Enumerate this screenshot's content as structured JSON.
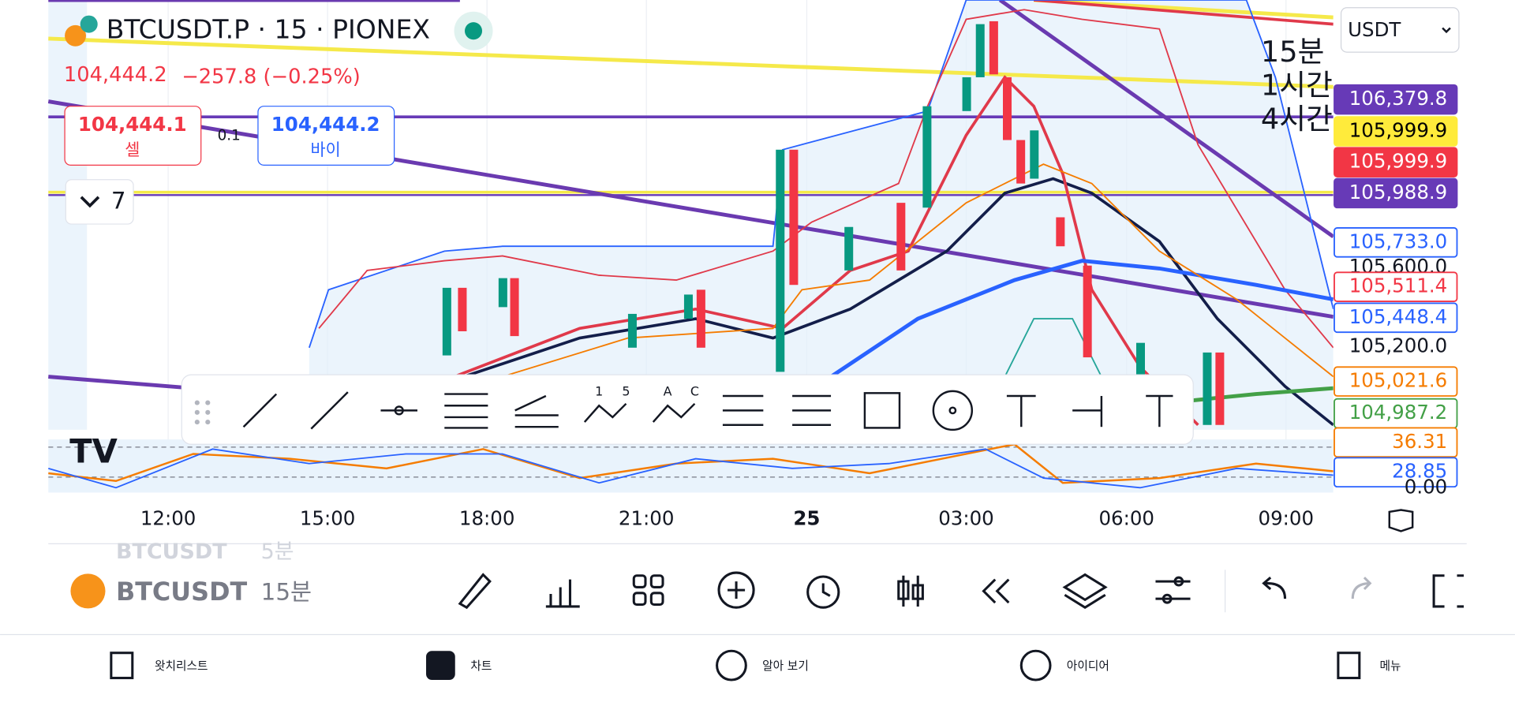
{
  "header": {
    "symbol": "BTCUSDT.P · 15 · PIONEX",
    "price": "104,444.2",
    "change": "−257.8 (−0.25%)"
  },
  "trade": {
    "sell_price": "104,444.1",
    "sell_label": "셀",
    "spread": "0.1",
    "buy_price": "104,444.2",
    "buy_label": "바이"
  },
  "indicators_collapsed": "7",
  "currency": "USDT",
  "intervals": [
    "15분",
    "1시간",
    "4시간"
  ],
  "price_labels": [
    {
      "text": "106,379.8",
      "bg": "#673ab7",
      "color": "#ffffff",
      "border": "#673ab7"
    },
    {
      "text": "105,999.9",
      "bg": "#ffeb3b",
      "color": "#000000",
      "border": "#ffeb3b"
    },
    {
      "text": "105,999.9",
      "bg": "#f23645",
      "color": "#ffffff",
      "border": "#f23645"
    },
    {
      "text": "105,988.9",
      "bg": "#673ab7",
      "color": "#ffffff",
      "border": "#673ab7"
    },
    {
      "text": "105,733.0",
      "bg": "#ffffff",
      "color": "#2962ff",
      "border": "#2962ff"
    },
    {
      "text": "105,600.0",
      "bg": "none",
      "color": "#131722",
      "border": "none"
    },
    {
      "text": "105,511.4",
      "bg": "#ffffff",
      "color": "#f23645",
      "border": "#f23645"
    },
    {
      "text": "105,448.4",
      "bg": "#ffffff",
      "color": "#2962ff",
      "border": "#2962ff"
    },
    {
      "text": "105,200.0",
      "bg": "none",
      "color": "#131722",
      "border": "none"
    },
    {
      "text": "105,021.6",
      "bg": "#ffffff",
      "color": "#f57c00",
      "border": "#f57c00"
    },
    {
      "text": "104,987.2",
      "bg": "#ffffff",
      "color": "#43a047",
      "border": "#43a047"
    }
  ],
  "oscillator_labels": [
    {
      "text": "36.31",
      "bg": "#ffffff",
      "color": "#f57c00",
      "border": "#f57c00"
    },
    {
      "text": "28.85",
      "bg": "#ffffff",
      "color": "#2962ff",
      "border": "#2962ff"
    },
    {
      "text": "0.00",
      "bg": "none",
      "color": "#131722",
      "border": "none"
    }
  ],
  "time_axis": [
    "12:00",
    "15:00",
    "18:00",
    "21:00",
    "25",
    "03:00",
    "06:00",
    "09:00"
  ],
  "drawing_tool_letters": [
    "1",
    "5",
    "A",
    "C"
  ],
  "symbol_list": {
    "previous": {
      "symbol": "BTCUSDT",
      "interval": "5분"
    },
    "current": {
      "symbol": "BTCUSDT",
      "interval": "15분"
    }
  },
  "nav": [
    "왓치리스트",
    "차트",
    "알아 보기",
    "아이디어",
    "메뉴"
  ]
}
